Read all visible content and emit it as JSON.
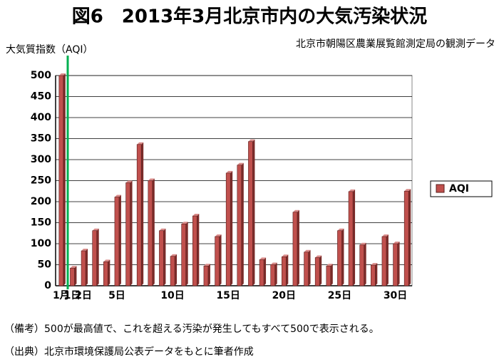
{
  "chart_data": {
    "type": "bar",
    "title": "図6　2013年3月北京市内の大気汚染状況",
    "subtitle": "北京市朝陽区農業展覧館測定局の観測データ",
    "y_label": "大気質指数（AQI）",
    "notes": [
      "（備考）500が最高値で、これを超える汚染が発生してもすべて500で表示される。",
      "（出典）北京市環境保護局公表データをもとに筆者作成"
    ],
    "categories": [
      "1月",
      "1日",
      "2日",
      null,
      null,
      "5日",
      null,
      null,
      null,
      null,
      "10日",
      null,
      null,
      null,
      null,
      "15日",
      null,
      null,
      null,
      null,
      "20日",
      null,
      null,
      null,
      null,
      "25日",
      null,
      null,
      null,
      null,
      "30日",
      null
    ],
    "series": [
      {
        "name": "AQI",
        "color": "#c0504d",
        "values": [
          500,
          42,
          83,
          131,
          57,
          211,
          245,
          336,
          250,
          131,
          70,
          147,
          166,
          47,
          117,
          268,
          287,
          343,
          62,
          50,
          69,
          175,
          80,
          67,
          47,
          131,
          224,
          97,
          49,
          117,
          100,
          225
        ]
      }
    ],
    "ylim": [
      0,
      500
    ],
    "yticks": [
      0,
      50,
      100,
      150,
      200,
      250,
      300,
      350,
      400,
      450,
      500
    ],
    "grid": true,
    "legend": "right"
  }
}
